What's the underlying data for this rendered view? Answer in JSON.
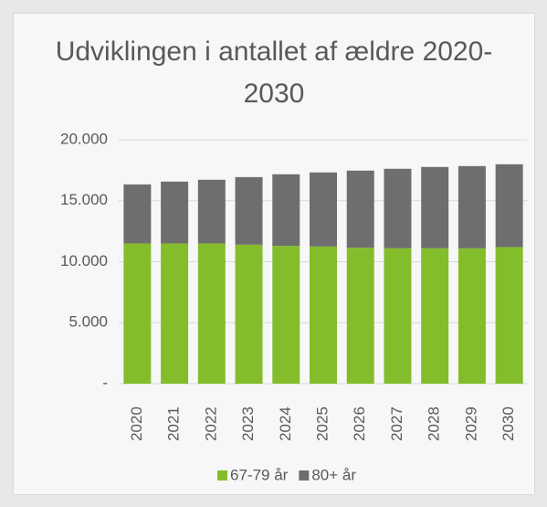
{
  "chart_data": {
    "type": "stacked_bar",
    "title": "Udviklingen i antallet af ældre 2020-2030",
    "categories": [
      "2020",
      "2021",
      "2022",
      "2023",
      "2024",
      "2025",
      "2026",
      "2027",
      "2028",
      "2029",
      "2030"
    ],
    "series": [
      {
        "name": "67-79 år",
        "color": "#84bd2c",
        "values": [
          11500,
          11500,
          11500,
          11400,
          11300,
          11250,
          11150,
          11100,
          11100,
          11100,
          11200
        ]
      },
      {
        "name": "80+ år",
        "color": "#6e6e6e",
        "values": [
          4840,
          5070,
          5220,
          5540,
          5870,
          6070,
          6320,
          6520,
          6670,
          6740,
          6790
        ]
      }
    ],
    "ylim": [
      0,
      20000
    ],
    "yticks": [
      {
        "value": 0,
        "label": "-"
      },
      {
        "value": 5000,
        "label": "5.000"
      },
      {
        "value": 10000,
        "label": "10.000"
      },
      {
        "value": 15000,
        "label": "15.000"
      },
      {
        "value": 20000,
        "label": "20.000"
      }
    ],
    "grid": true
  }
}
